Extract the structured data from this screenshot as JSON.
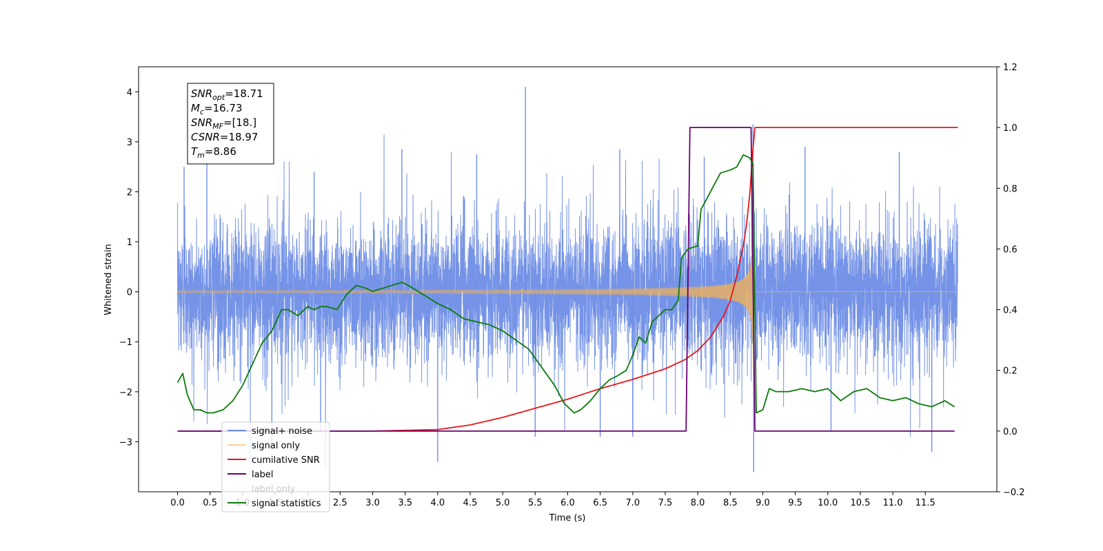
{
  "chart_data": {
    "type": "line",
    "title": "",
    "xlabel": "Time (s)",
    "ylabel": "Whitened strain",
    "y2label": "",
    "xlim": [
      -0.6,
      12.6
    ],
    "ylim": [
      -4.0,
      4.5
    ],
    "y2lim": [
      -0.2,
      1.2
    ],
    "xticks": [
      0.0,
      0.5,
      1.0,
      1.5,
      2.0,
      2.5,
      3.0,
      3.5,
      4.0,
      4.5,
      5.0,
      5.5,
      6.0,
      6.5,
      7.0,
      7.5,
      8.0,
      8.5,
      9.0,
      9.5,
      10.0,
      10.5,
      11.0,
      11.5
    ],
    "xtick_labels": [
      "0.0",
      "0.5",
      "1.0",
      "1.5",
      "2.0",
      "2.5",
      "3.0",
      "3.5",
      "4.0",
      "4.5",
      "5.0",
      "5.5",
      "6.0",
      "6.5",
      "7.0",
      "7.5",
      "8.0",
      "8.5",
      "9.0",
      "9.5",
      "10.0",
      "10.5",
      "11.0",
      "11.5"
    ],
    "yticks": [
      -3,
      -2,
      -1,
      0,
      1,
      2,
      3,
      4
    ],
    "ytick_labels": [
      "−3",
      "−2",
      "−1",
      "0",
      "1",
      "2",
      "3",
      "4"
    ],
    "y2ticks": [
      -0.2,
      0.0,
      0.2,
      0.4,
      0.6,
      0.8,
      1.0,
      1.2
    ],
    "y2tick_labels": [
      "−0.2",
      "0.0",
      "0.2",
      "0.4",
      "0.6",
      "0.8",
      "1.0",
      "1.2"
    ],
    "legend_position": "lower-left",
    "annotation_box": {
      "position": "top-left",
      "lines": [
        {
          "base": "SNR",
          "sub": "opt",
          "value": "=18.71"
        },
        {
          "base": "M",
          "sub": "c",
          "value": "=16.73"
        },
        {
          "base": "SNR",
          "sub": "MF",
          "value": "=[18.]"
        },
        {
          "base": "CSNR",
          "sub": "",
          "value": "=18.97"
        },
        {
          "base": "T",
          "sub": "m",
          "value": "=8.86"
        }
      ]
    },
    "series": [
      {
        "name": "signal+ noise",
        "axis": "left",
        "color": "#6f8ee6",
        "kind": "noise",
        "x_range": [
          0.0,
          12.0
        ],
        "noise_sigma": 0.85,
        "spikes": [
          {
            "x": 0.1,
            "y": 2.5
          },
          {
            "x": 0.45,
            "y": 2.6
          },
          {
            "x": 1.45,
            "y": -3.0
          },
          {
            "x": 2.1,
            "y": 2.4
          },
          {
            "x": 2.2,
            "y": -2.8
          },
          {
            "x": 3.45,
            "y": 2.85
          },
          {
            "x": 4.0,
            "y": -3.4
          },
          {
            "x": 4.6,
            "y": 2.75
          },
          {
            "x": 5.35,
            "y": 4.1
          },
          {
            "x": 5.5,
            "y": -2.9
          },
          {
            "x": 6.5,
            "y": -2.9
          },
          {
            "x": 6.8,
            "y": 2.85
          },
          {
            "x": 7.0,
            "y": -2.9
          },
          {
            "x": 8.1,
            "y": 2.7
          },
          {
            "x": 8.85,
            "y": 3.35
          },
          {
            "x": 8.86,
            "y": -3.6
          },
          {
            "x": 9.65,
            "y": 2.9
          },
          {
            "x": 10.05,
            "y": -2.8
          },
          {
            "x": 11.1,
            "y": 2.8
          },
          {
            "x": 11.6,
            "y": -3.2
          }
        ]
      },
      {
        "name": "signal only",
        "axis": "left",
        "color": "#f5b250",
        "kind": "chirp",
        "merger_time": 8.86,
        "amplitude_near_merger": 2.6
      },
      {
        "name": "cumilative SNR",
        "axis": "right",
        "color": "#e8141a",
        "x": [
          0.0,
          3.0,
          4.0,
          4.5,
          5.0,
          5.5,
          6.0,
          6.5,
          7.0,
          7.5,
          7.8,
          8.0,
          8.2,
          8.4,
          8.5,
          8.6,
          8.7,
          8.75,
          8.8,
          8.85,
          8.88,
          12.0
        ],
        "values": [
          0.0,
          0.0,
          0.005,
          0.02,
          0.045,
          0.075,
          0.105,
          0.14,
          0.17,
          0.205,
          0.235,
          0.265,
          0.31,
          0.38,
          0.43,
          0.51,
          0.61,
          0.68,
          0.78,
          0.93,
          1.0,
          1.0
        ]
      },
      {
        "name": "label",
        "axis": "right",
        "color": "#6a0070",
        "x": [
          0.0,
          7.82,
          7.88,
          8.82,
          8.88,
          11.95
        ],
        "values": [
          0.0,
          0.0,
          1.0,
          1.0,
          0.0,
          0.0
        ]
      },
      {
        "name": "label only",
        "axis": "right",
        "color": "#aaaaaa",
        "hidden": true
      },
      {
        "name": "signal statistics",
        "axis": "right",
        "color": "#0a7a0a",
        "x": [
          0.0,
          0.08,
          0.15,
          0.25,
          0.35,
          0.45,
          0.55,
          0.7,
          0.85,
          1.0,
          1.15,
          1.3,
          1.45,
          1.6,
          1.7,
          1.85,
          2.0,
          2.1,
          2.2,
          2.3,
          2.45,
          2.6,
          2.75,
          2.9,
          3.0,
          3.15,
          3.3,
          3.45,
          3.55,
          3.7,
          3.85,
          4.0,
          4.2,
          4.4,
          4.6,
          4.8,
          5.0,
          5.2,
          5.4,
          5.6,
          5.8,
          5.95,
          6.1,
          6.2,
          6.35,
          6.5,
          6.65,
          6.75,
          6.9,
          7.0,
          7.1,
          7.2,
          7.3,
          7.4,
          7.5,
          7.6,
          7.7,
          7.75,
          7.85,
          8.0,
          8.05,
          8.2,
          8.35,
          8.5,
          8.6,
          8.7,
          8.8,
          8.85,
          8.9,
          9.0,
          9.1,
          9.2,
          9.4,
          9.6,
          9.8,
          10.0,
          10.2,
          10.4,
          10.6,
          10.8,
          11.0,
          11.2,
          11.4,
          11.6,
          11.8,
          11.95
        ],
        "values": [
          0.16,
          0.19,
          0.12,
          0.07,
          0.07,
          0.06,
          0.06,
          0.07,
          0.1,
          0.15,
          0.22,
          0.29,
          0.33,
          0.4,
          0.4,
          0.38,
          0.41,
          0.4,
          0.41,
          0.41,
          0.4,
          0.45,
          0.48,
          0.47,
          0.46,
          0.47,
          0.48,
          0.49,
          0.48,
          0.46,
          0.44,
          0.42,
          0.4,
          0.37,
          0.36,
          0.35,
          0.33,
          0.3,
          0.27,
          0.21,
          0.15,
          0.09,
          0.06,
          0.07,
          0.1,
          0.14,
          0.17,
          0.18,
          0.2,
          0.25,
          0.31,
          0.29,
          0.36,
          0.38,
          0.4,
          0.4,
          0.43,
          0.57,
          0.6,
          0.61,
          0.73,
          0.79,
          0.85,
          0.86,
          0.87,
          0.91,
          0.9,
          0.88,
          0.06,
          0.07,
          0.14,
          0.13,
          0.13,
          0.14,
          0.13,
          0.14,
          0.1,
          0.13,
          0.14,
          0.11,
          0.1,
          0.11,
          0.09,
          0.08,
          0.1,
          0.08
        ]
      }
    ]
  }
}
